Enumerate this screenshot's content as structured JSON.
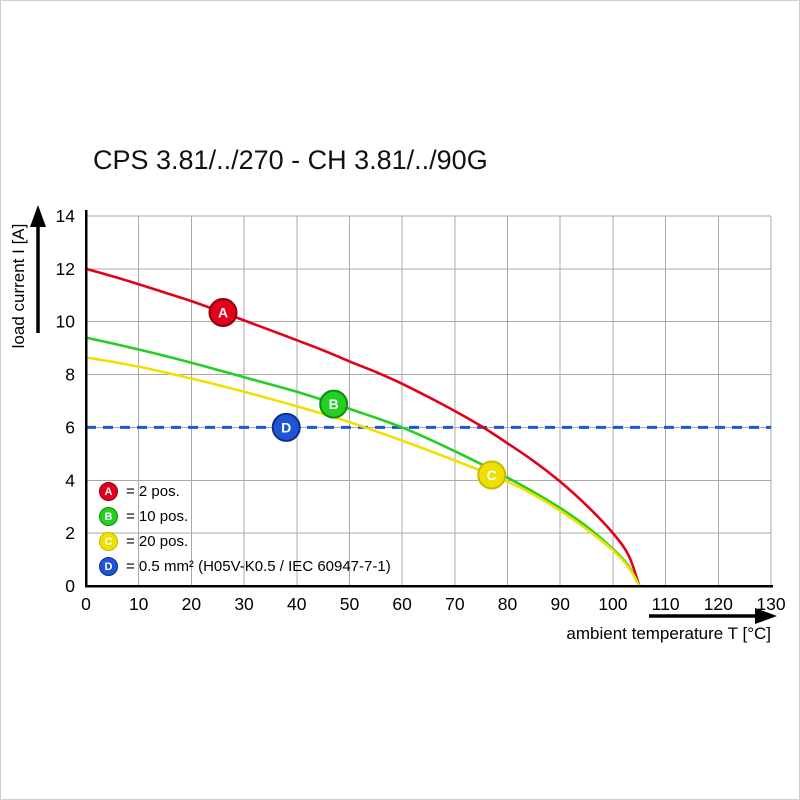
{
  "title": "CPS 3.81/../270 - CH 3.81/../90G",
  "chart_data": {
    "type": "line",
    "title": "CPS 3.81/../270 - CH 3.81/../90G",
    "xlabel": "ambient temperature T [°C]",
    "ylabel": "load current I [A]",
    "xlim": [
      0,
      130
    ],
    "ylim": [
      0,
      14
    ],
    "xticks": [
      0,
      10,
      20,
      30,
      40,
      50,
      60,
      70,
      80,
      90,
      100,
      110,
      120,
      130
    ],
    "yticks": [
      0,
      2,
      4,
      6,
      8,
      10,
      12,
      14
    ],
    "grid": true,
    "grid_color": "#a9a9a9",
    "axis_color": "#000000",
    "series": [
      {
        "id": "A",
        "name": "2 pos.",
        "color": "#e2001a",
        "ring": "#8f0010",
        "points": [
          [
            0,
            12.0
          ],
          [
            5,
            11.72
          ],
          [
            10,
            11.42
          ],
          [
            15,
            11.1
          ],
          [
            20,
            10.78
          ],
          [
            25,
            10.42
          ],
          [
            30,
            10.05
          ],
          [
            35,
            9.68
          ],
          [
            40,
            9.3
          ],
          [
            45,
            8.92
          ],
          [
            50,
            8.5
          ],
          [
            55,
            8.1
          ],
          [
            60,
            7.65
          ],
          [
            65,
            7.15
          ],
          [
            70,
            6.62
          ],
          [
            75,
            6.05
          ],
          [
            80,
            5.4
          ],
          [
            85,
            4.72
          ],
          [
            90,
            3.95
          ],
          [
            95,
            3.05
          ],
          [
            100,
            2.0
          ],
          [
            103,
            1.15
          ],
          [
            105,
            0.0
          ]
        ],
        "marker": {
          "x": 26,
          "y": 10.35,
          "label": "A"
        }
      },
      {
        "id": "B",
        "name": "10 pos.",
        "color": "#22cf22",
        "ring": "#0d8c0d",
        "points": [
          [
            0,
            9.4
          ],
          [
            10,
            8.95
          ],
          [
            20,
            8.45
          ],
          [
            30,
            7.9
          ],
          [
            40,
            7.35
          ],
          [
            50,
            6.7
          ],
          [
            60,
            6.0
          ],
          [
            70,
            5.1
          ],
          [
            80,
            4.1
          ],
          [
            85,
            3.55
          ],
          [
            90,
            2.95
          ],
          [
            95,
            2.25
          ],
          [
            100,
            1.4
          ],
          [
            103,
            0.75
          ],
          [
            105,
            0.0
          ]
        ],
        "marker": {
          "x": 47,
          "y": 6.88,
          "label": "B"
        }
      },
      {
        "id": "C",
        "name": "20 pos.",
        "color": "#efe000",
        "ring": "#c9b800",
        "points": [
          [
            0,
            8.65
          ],
          [
            10,
            8.3
          ],
          [
            20,
            7.85
          ],
          [
            30,
            7.35
          ],
          [
            40,
            6.8
          ],
          [
            50,
            6.2
          ],
          [
            60,
            5.5
          ],
          [
            70,
            4.75
          ],
          [
            80,
            3.95
          ],
          [
            85,
            3.45
          ],
          [
            90,
            2.85
          ],
          [
            95,
            2.15
          ],
          [
            100,
            1.35
          ],
          [
            103,
            0.7
          ],
          [
            105,
            0.0
          ]
        ],
        "marker": {
          "x": 77,
          "y": 4.2,
          "label": "C"
        }
      }
    ],
    "reference_line": {
      "id": "D",
      "name": "0.5 mm² (H05V-K0.5 / IEC 60947-7-1)",
      "y": 6,
      "color": "#1e55d6",
      "ring": "#0f2e86",
      "style": "dashed",
      "marker": {
        "x": 38,
        "y": 6,
        "label": "D"
      }
    }
  },
  "legend": {
    "items": [
      {
        "letter": "A",
        "label": "= 2 pos.",
        "color": "#e2001a",
        "ring": "#8f0010"
      },
      {
        "letter": "B",
        "label": "= 10 pos.",
        "color": "#22cf22",
        "ring": "#0d8c0d"
      },
      {
        "letter": "C",
        "label": "= 20 pos.",
        "color": "#efe000",
        "ring": "#c9b800"
      },
      {
        "letter": "D",
        "label": "= 0.5 mm² (H05V-K0.5 / IEC 60947-7-1)",
        "color": "#1e55d6",
        "ring": "#0f2e86"
      }
    ]
  }
}
